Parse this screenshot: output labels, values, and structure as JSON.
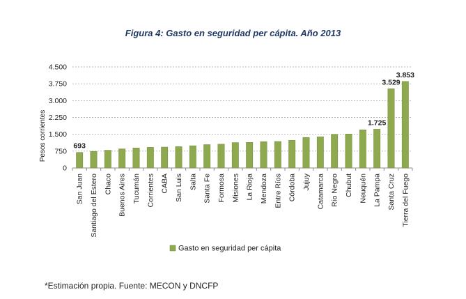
{
  "title": "Figura 4: Gasto en seguridad per cápita. Año 2013",
  "source_note": "*Estimación propia. Fuente: MECON y DNCFP",
  "chart_data": {
    "type": "bar",
    "title": "Figura 4: Gasto en seguridad per cápita. Año 2013",
    "xlabel": "",
    "ylabel": "Pesos corrientes",
    "ylim": [
      0,
      4500
    ],
    "yticks": [
      0,
      750,
      1500,
      2250,
      3000,
      3750,
      4500
    ],
    "ytick_labels": [
      "0",
      "750",
      "1.500",
      "2.250",
      "3.000",
      "3.750",
      "4.500"
    ],
    "grid": true,
    "legend_position": "bottom",
    "bar_color": "#8faa4e",
    "categories": [
      "San Juan",
      "Santiago del Estero",
      "Chaco",
      "Buenos Aires",
      "Tucumán",
      "Corrientes",
      "CABA",
      "San Luis",
      "Salta",
      "Santa Fe",
      "Formosa",
      "Misiones",
      "La Rioja",
      "Mendoza",
      "Entre Ríos",
      "Córdoba",
      "Jujuy",
      "Catamarca",
      "Río Negro",
      "Chubut",
      "Neuquén",
      "La Pampa",
      "Santa Cruz",
      "Tierra del Fuego"
    ],
    "series": [
      {
        "name": "Gasto en seguridad per cápita",
        "values": [
          693,
          740,
          790,
          850,
          890,
          920,
          930,
          950,
          990,
          1040,
          1060,
          1130,
          1140,
          1170,
          1180,
          1230,
          1360,
          1390,
          1500,
          1510,
          1700,
          1725,
          3529,
          3853
        ]
      }
    ],
    "data_labels": [
      {
        "index": 0,
        "text": "693"
      },
      {
        "index": 21,
        "text": "1.725"
      },
      {
        "index": 22,
        "text": "3.529"
      },
      {
        "index": 23,
        "text": "3.853"
      }
    ]
  }
}
